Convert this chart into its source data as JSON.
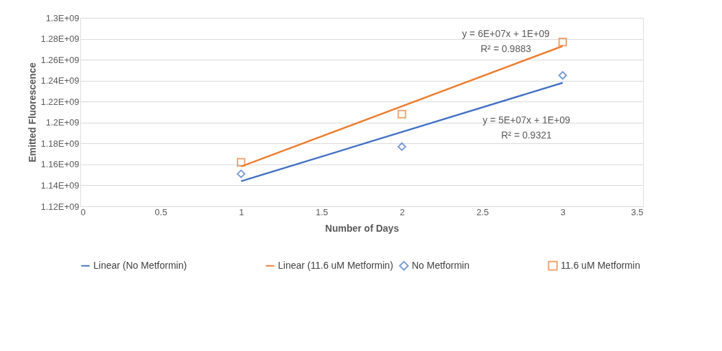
{
  "chart_data": {
    "type": "scatter",
    "xlabel": "Number of Days",
    "ylabel": "Emitted Fluorescence",
    "xlim": [
      0,
      3.5
    ],
    "xticks": [
      0,
      0.5,
      1,
      1.5,
      2,
      2.5,
      3,
      3.5
    ],
    "line_style": "solid",
    "ylim": [
      1120000000,
      1300000000
    ],
    "yticks": [
      {
        "value": 1120000000,
        "label": "1.12E+09"
      },
      {
        "value": 1140000000,
        "label": "1.14E+09"
      },
      {
        "value": 1160000000,
        "label": "1.16E+09"
      },
      {
        "value": 1180000000,
        "label": "1.18E+09"
      },
      {
        "value": 1200000000,
        "label": "1.2E+09"
      },
      {
        "value": 1220000000,
        "label": "1.22E+09"
      },
      {
        "value": 1240000000,
        "label": "1.24E+09"
      },
      {
        "value": 1260000000,
        "label": "1.26E+09"
      },
      {
        "value": 1280000000,
        "label": "1.28E+09"
      },
      {
        "value": 1300000000,
        "label": "1.3E+09"
      }
    ],
    "grid": "y",
    "legend": "bottom",
    "series": [
      {
        "name": "No Metformin",
        "marker": "diamond",
        "color": "#4472c4",
        "x": [
          1,
          2,
          3
        ],
        "values": [
          1151000000,
          1177000000,
          1245000000
        ]
      },
      {
        "name": "11.6 uM Metformin",
        "marker": "square",
        "color": "#ed7d31",
        "x": [
          1,
          2,
          3
        ],
        "values": [
          1162000000,
          1208000000,
          1277000000
        ]
      },
      {
        "name": "Linear (No Metformin)",
        "type": "line",
        "color": "#4472c4",
        "x": [
          1,
          3
        ],
        "values": [
          1144000000,
          1238000000
        ]
      },
      {
        "name": "Linear (11.6 uM Metformin)",
        "type": "line",
        "color": "#ed7d31",
        "x": [
          1,
          3
        ],
        "values": [
          1158000000,
          1273000000
        ]
      }
    ],
    "annotations": [
      "y = 6E+07x + 1E+09",
      "R² = 0.9883",
      "y = 5E+07x + 1E+09",
      "R² = 0.9321"
    ]
  }
}
